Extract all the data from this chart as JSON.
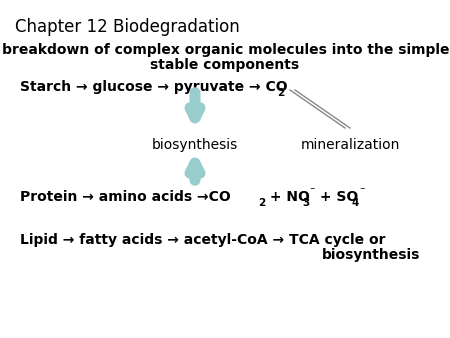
{
  "bg_color": "#ffffff",
  "text_color": "#000000",
  "arrow_color": "#99cccc",
  "line_color": "#888888",
  "title": "Chapter 12 Biodegradation",
  "title_fontsize": 12,
  "subtitle": "--- breakdown of complex organic molecules into the simplest,\n          stable components",
  "subtitle_fontsize": 10,
  "starch_line": "Starch → glucose → pyruvate → CO",
  "biosyn_label": "biosynthesis",
  "mineral_label": "mineralization",
  "protein_line": "Protein → amino acids →CO",
  "protein_suffix": " + NO",
  "protein_suffix2": "⁻ + SO",
  "protein_suffix3": "⁻",
  "lipid_line": "Lipid → fatty acids → acetyl-CoA → TCA cycle or",
  "lipid_line2": "biosynthesis",
  "main_fontsize": 10
}
